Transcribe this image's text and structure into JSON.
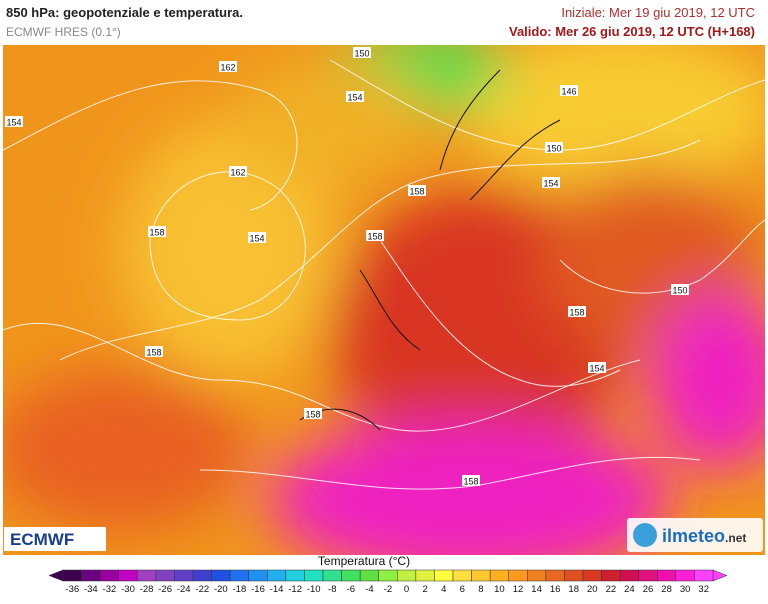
{
  "header": {
    "title": "850 hPa: geopotenziale e temperatura.",
    "model": "ECMWF HRES (0.1°)",
    "initial": "Iniziale: Mer 19 giu 2019, 12 UTC",
    "valid": "Valido: Mer 26 giu 2019, 12 UTC (H+168)"
  },
  "map": {
    "contour_labels": [
      150,
      162,
      154,
      146,
      154,
      150,
      162,
      154,
      158,
      158,
      154,
      158,
      150,
      158,
      158,
      154,
      158,
      158
    ]
  },
  "logos": {
    "left": "ECMWF",
    "right": "ilmeteo",
    "right_suffix": ".net"
  },
  "colorbar": {
    "label": "Temperatura (°C)",
    "ticks": [
      -36,
      -34,
      -32,
      -30,
      -28,
      -26,
      -24,
      -22,
      -20,
      -18,
      -16,
      -14,
      -12,
      -10,
      -8,
      -6,
      -4,
      -2,
      0,
      2,
      4,
      6,
      8,
      10,
      12,
      14,
      16,
      18,
      20,
      22,
      24,
      26,
      28,
      30,
      32
    ],
    "colors": [
      "#3c0050",
      "#6a0080",
      "#9a00a0",
      "#c400c4",
      "#a040c0",
      "#8040c0",
      "#6040c8",
      "#4040d0",
      "#2050e0",
      "#2070f0",
      "#2090f0",
      "#20b0f0",
      "#20d0e0",
      "#20e0c0",
      "#30e090",
      "#40e060",
      "#60e040",
      "#90f040",
      "#c0f040",
      "#e0f040",
      "#ffff40",
      "#ffe040",
      "#ffc830",
      "#ffb020",
      "#ff9820",
      "#f08020",
      "#e86820",
      "#e05020",
      "#d83820",
      "#d02030",
      "#d01050",
      "#e01080",
      "#f010b0",
      "#ff20d8",
      "#ff40ff"
    ]
  }
}
